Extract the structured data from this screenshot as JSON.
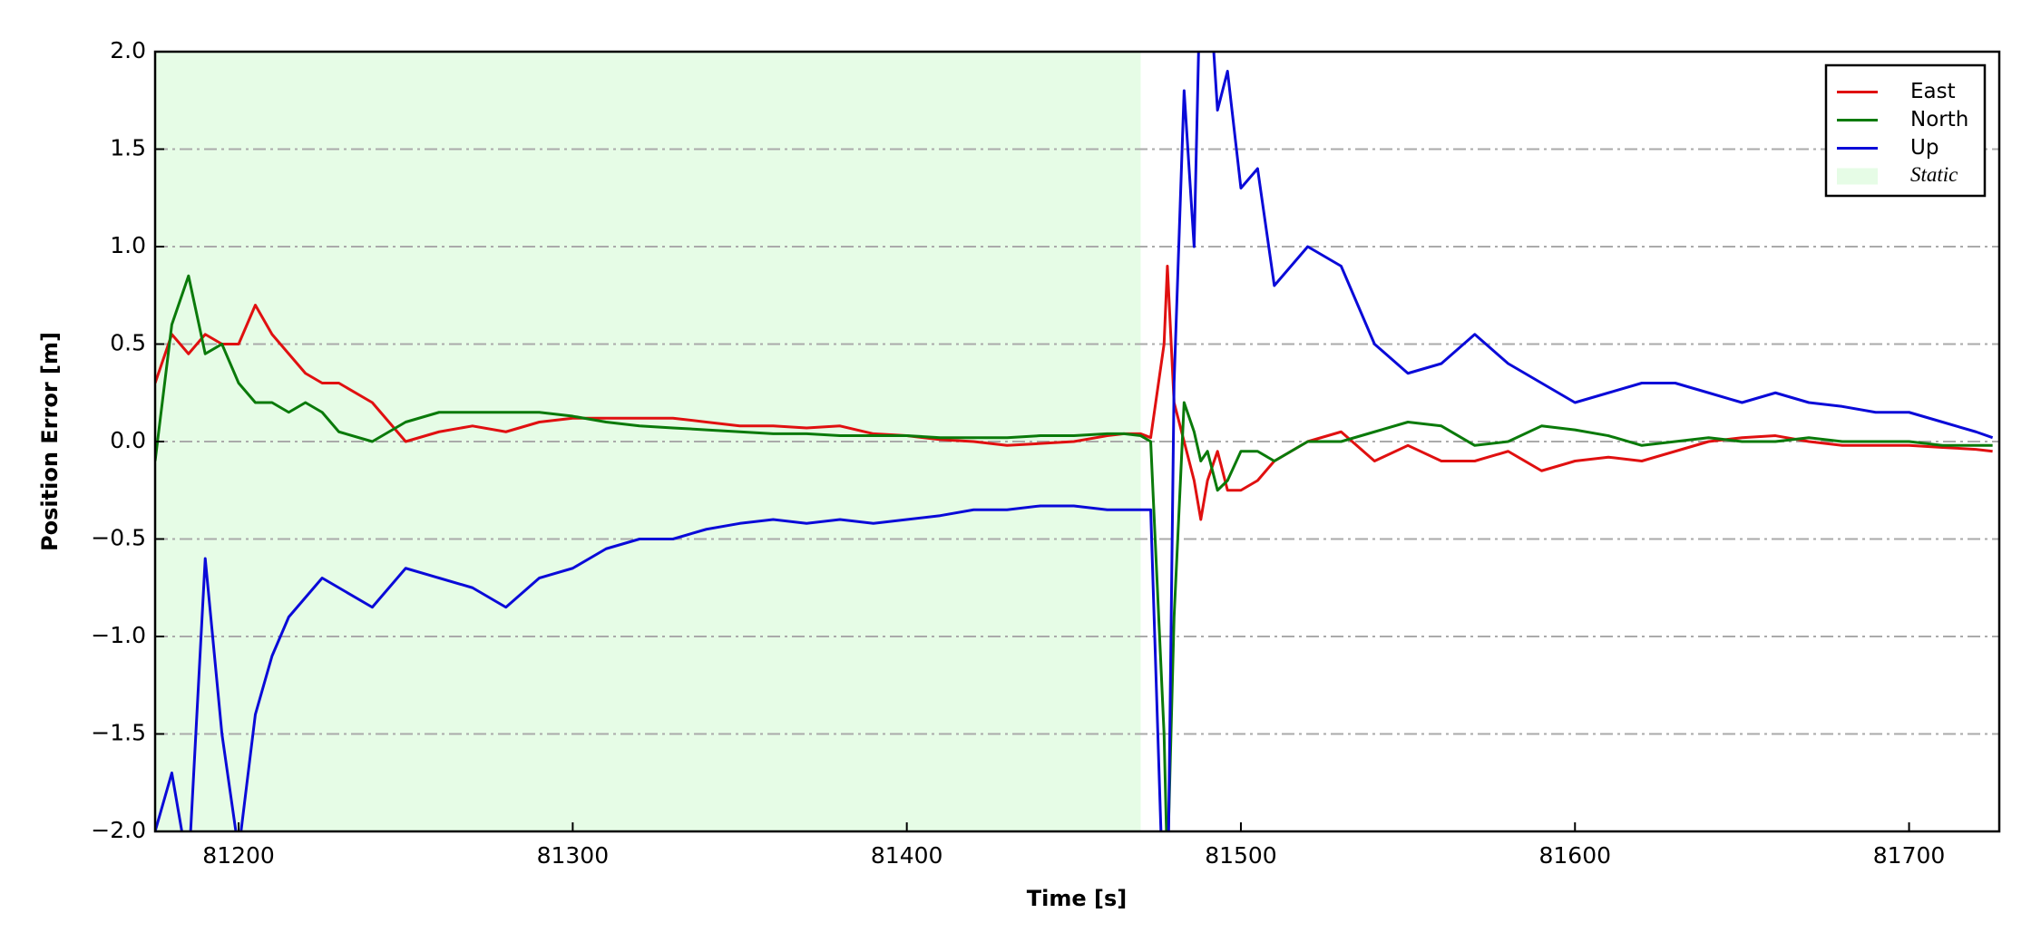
{
  "chart_data": {
    "type": "line",
    "x_label": "Time [s]",
    "y_label": "Position Error [m]",
    "xlim": [
      81175,
      81727
    ],
    "ylim": [
      -2,
      2
    ],
    "xticks": [
      81200,
      81300,
      81400,
      81500,
      81600,
      81700
    ],
    "yticks": [
      {
        "value": -2,
        "label": "−2.0"
      },
      {
        "value": -1.5,
        "label": "−1.5"
      },
      {
        "value": -1,
        "label": "−1.0"
      },
      {
        "value": -0.5,
        "label": "−0.5"
      },
      {
        "value": 0,
        "label": "0.0"
      },
      {
        "value": 0.5,
        "label": "0.5"
      },
      {
        "value": 1,
        "label": "1.0"
      },
      {
        "value": 1.5,
        "label": "1.5"
      },
      {
        "value": 2,
        "label": "2.0"
      }
    ],
    "grid": true,
    "legend": "upper right",
    "shaded_regions": [
      {
        "name": "Static",
        "color": "#e6fce6",
        "span": [
          81175,
          81470
        ]
      }
    ],
    "x": [
      81175,
      81180,
      81185,
      81190,
      81195,
      81200,
      81205,
      81210,
      81215,
      81220,
      81225,
      81230,
      81240,
      81250,
      81260,
      81270,
      81280,
      81290,
      81300,
      81310,
      81320,
      81330,
      81340,
      81350,
      81360,
      81370,
      81380,
      81390,
      81400,
      81410,
      81420,
      81430,
      81440,
      81450,
      81460,
      81465,
      81470,
      81473,
      81477,
      81478,
      81480,
      81483,
      81486,
      81488,
      81490,
      81493,
      81496,
      81500,
      81505,
      81510,
      81520,
      81530,
      81540,
      81550,
      81560,
      81570,
      81580,
      81590,
      81600,
      81610,
      81620,
      81630,
      81640,
      81650,
      81660,
      81670,
      81680,
      81690,
      81700,
      81710,
      81720,
      81725
    ],
    "series": [
      {
        "name": "East",
        "color": "#e01010",
        "values": [
          0.3,
          0.55,
          0.45,
          0.55,
          0.5,
          0.5,
          0.7,
          0.55,
          0.45,
          0.35,
          0.3,
          0.3,
          0.2,
          0.0,
          0.05,
          0.08,
          0.05,
          0.1,
          0.12,
          0.12,
          0.12,
          0.12,
          0.1,
          0.08,
          0.08,
          0.07,
          0.08,
          0.04,
          0.03,
          0.01,
          0.0,
          -0.02,
          -0.01,
          0.0,
          0.03,
          0.04,
          0.04,
          0.02,
          0.5,
          0.9,
          0.2,
          0.0,
          -0.2,
          -0.4,
          -0.2,
          -0.05,
          -0.25,
          -0.25,
          -0.2,
          -0.1,
          0.0,
          0.05,
          -0.1,
          -0.02,
          -0.1,
          -0.1,
          -0.05,
          -0.15,
          -0.1,
          -0.08,
          -0.1,
          -0.05,
          0.0,
          0.02,
          0.03,
          0.0,
          -0.02,
          -0.02,
          -0.02,
          -0.03,
          -0.04,
          -0.05
        ]
      },
      {
        "name": "North",
        "color": "#0a7a0a",
        "values": [
          -0.1,
          0.6,
          0.85,
          0.45,
          0.5,
          0.3,
          0.2,
          0.2,
          0.15,
          0.2,
          0.15,
          0.05,
          0.0,
          0.1,
          0.15,
          0.15,
          0.15,
          0.15,
          0.13,
          0.1,
          0.08,
          0.07,
          0.06,
          0.05,
          0.04,
          0.04,
          0.03,
          0.03,
          0.03,
          0.02,
          0.02,
          0.02,
          0.03,
          0.03,
          0.04,
          0.04,
          0.03,
          0.0,
          -1.5,
          -2.2,
          -0.9,
          0.2,
          0.05,
          -0.1,
          -0.05,
          -0.25,
          -0.2,
          -0.05,
          -0.05,
          -0.1,
          0.0,
          0.0,
          0.05,
          0.1,
          0.08,
          -0.02,
          0.0,
          0.08,
          0.06,
          0.03,
          -0.02,
          0.0,
          0.02,
          0.0,
          0.0,
          0.02,
          0.0,
          0.0,
          0.0,
          -0.02,
          -0.02,
          -0.02
        ]
      },
      {
        "name": "Up",
        "color": "#0a0ad8",
        "values": [
          -2.0,
          -1.7,
          -2.2,
          -0.6,
          -1.5,
          -2.1,
          -1.4,
          -1.1,
          -0.9,
          -0.8,
          -0.7,
          -0.75,
          -0.85,
          -0.65,
          -0.7,
          -0.75,
          -0.85,
          -0.7,
          -0.65,
          -0.55,
          -0.5,
          -0.5,
          -0.45,
          -0.42,
          -0.4,
          -0.42,
          -0.4,
          -0.42,
          -0.4,
          -0.38,
          -0.35,
          -0.35,
          -0.33,
          -0.33,
          -0.35,
          -0.35,
          -0.35,
          -0.35,
          -2.5,
          -2.5,
          0.3,
          1.8,
          1.0,
          2.5,
          2.5,
          1.7,
          1.9,
          1.3,
          1.4,
          0.8,
          1.0,
          0.9,
          0.5,
          0.35,
          0.4,
          0.55,
          0.4,
          0.3,
          0.2,
          0.25,
          0.3,
          0.3,
          0.25,
          0.2,
          0.25,
          0.2,
          0.18,
          0.15,
          0.15,
          0.1,
          0.05,
          0.02
        ]
      }
    ]
  }
}
